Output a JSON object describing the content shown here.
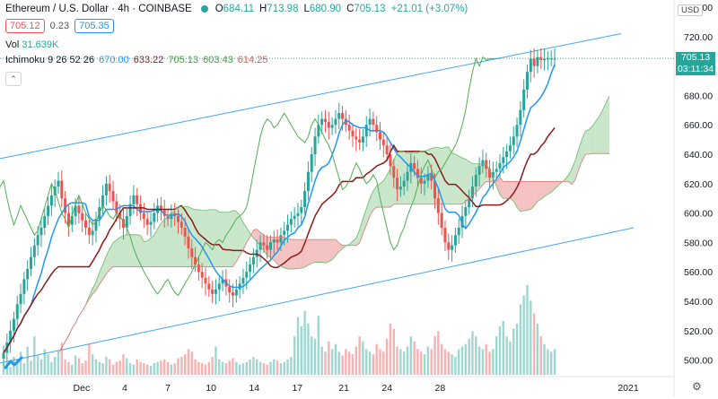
{
  "legend": {
    "symbol": "Ethereum / U.S. Dollar · 4h · COINBASE",
    "o_label": "O",
    "o_val": "684.11",
    "h_label": "H",
    "h_val": "713.98",
    "l_label": "L",
    "l_val": "680.90",
    "c_label": "C",
    "c_val": "705.13",
    "change": "+21.01 (+3.07%)",
    "bid": "705.12",
    "spread": "0.23",
    "ask": "705.35",
    "vol_label": "Vol",
    "vol_val": "31.639K",
    "ichimoku_label": "Ichimoku 9 26 52 26",
    "ich_v1": "670.00",
    "ich_v2": "633.22",
    "ich_v3": "705.13",
    "ich_v4": "603.43",
    "ich_v5": "614.25"
  },
  "price_scale": {
    "currency": "USD",
    "last_price": "705.13",
    "countdown": "03:11:34"
  },
  "colors": {
    "up": "#26a69a",
    "down": "#ef5350",
    "tenkan": "#2196f3",
    "kijun": "#8b1a1a",
    "chikou": "#4caf50",
    "cloud_green": "#a5d6a7",
    "cloud_red": "#ef9a9a",
    "channel": "#42a5f5"
  },
  "chart_data": {
    "type": "candlestick",
    "title": "Ethereum / U.S. Dollar · 4h · COINBASE",
    "ylim": [
      490,
      740
    ],
    "y_ticks": [
      500,
      520,
      540,
      560,
      580,
      600,
      620,
      640,
      660,
      680,
      700,
      720,
      740
    ],
    "x_ticks": [
      "Dec",
      "4",
      "7",
      "10",
      "14",
      "17",
      "21",
      "24",
      "28",
      "2021"
    ],
    "n_bars": 162,
    "close_series": [
      505,
      512,
      520,
      528,
      538,
      545,
      555,
      562,
      570,
      578,
      585,
      590,
      598,
      605,
      612,
      618,
      622,
      610,
      600,
      592,
      598,
      605,
      600,
      595,
      590,
      585,
      588,
      596,
      604,
      612,
      620,
      615,
      608,
      600,
      596,
      590,
      598,
      606,
      612,
      606,
      600,
      596,
      592,
      594,
      600,
      605,
      602,
      598,
      596,
      600,
      598,
      594,
      590,
      584,
      576,
      570,
      565,
      560,
      556,
      552,
      548,
      545,
      548,
      552,
      555,
      550,
      546,
      544,
      548,
      552,
      556,
      560,
      565,
      570,
      575,
      580,
      578,
      575,
      580,
      582,
      580,
      585,
      588,
      592,
      596,
      598,
      600,
      604,
      615,
      628,
      640,
      652,
      660,
      664,
      662,
      658,
      660,
      664,
      668,
      664,
      660,
      656,
      652,
      650,
      648,
      652,
      660,
      664,
      660,
      655,
      650,
      646,
      640,
      632,
      624,
      616,
      618,
      622,
      628,
      634,
      630,
      624,
      620,
      622,
      626,
      622,
      610,
      600,
      590,
      580,
      575,
      578,
      585,
      590,
      598,
      604,
      610,
      618,
      626,
      632,
      636,
      630,
      624,
      628,
      630,
      634,
      638,
      642,
      646,
      652,
      660,
      670,
      684,
      696,
      705,
      700,
      706,
      704,
      705,
      705,
      705,
      705
    ],
    "volume": [
      8,
      10,
      6,
      14,
      12,
      18,
      9,
      22,
      11,
      30,
      15,
      12,
      20,
      16,
      10,
      14,
      18,
      25,
      12,
      10,
      8,
      15,
      13,
      9,
      11,
      24,
      16,
      12,
      10,
      9,
      14,
      12,
      8,
      10,
      11,
      16,
      13,
      9,
      8,
      12,
      10,
      9,
      8,
      7,
      9,
      10,
      11,
      12,
      10,
      8,
      9,
      13,
      14,
      16,
      20,
      18,
      12,
      10,
      9,
      8,
      10,
      14,
      22,
      12,
      10,
      9,
      11,
      13,
      10,
      8,
      9,
      10,
      12,
      14,
      12,
      10,
      9,
      8,
      10,
      12,
      11,
      9,
      10,
      12,
      14,
      30,
      45,
      38,
      50,
      40,
      30,
      28,
      46,
      22,
      18,
      26,
      20,
      24,
      18,
      15,
      20,
      18,
      16,
      22,
      30,
      26,
      20,
      18,
      16,
      24,
      20,
      18,
      28,
      40,
      36,
      22,
      20,
      18,
      22,
      30,
      26,
      20,
      18,
      16,
      22,
      20,
      30,
      34,
      24,
      20,
      18,
      16,
      14,
      20,
      22,
      24,
      28,
      34,
      30,
      22,
      20,
      24,
      18,
      20,
      30,
      38,
      42,
      30,
      26,
      36,
      40,
      55,
      62,
      70,
      58,
      48,
      40,
      30,
      24,
      20,
      18,
      20
    ]
  }
}
